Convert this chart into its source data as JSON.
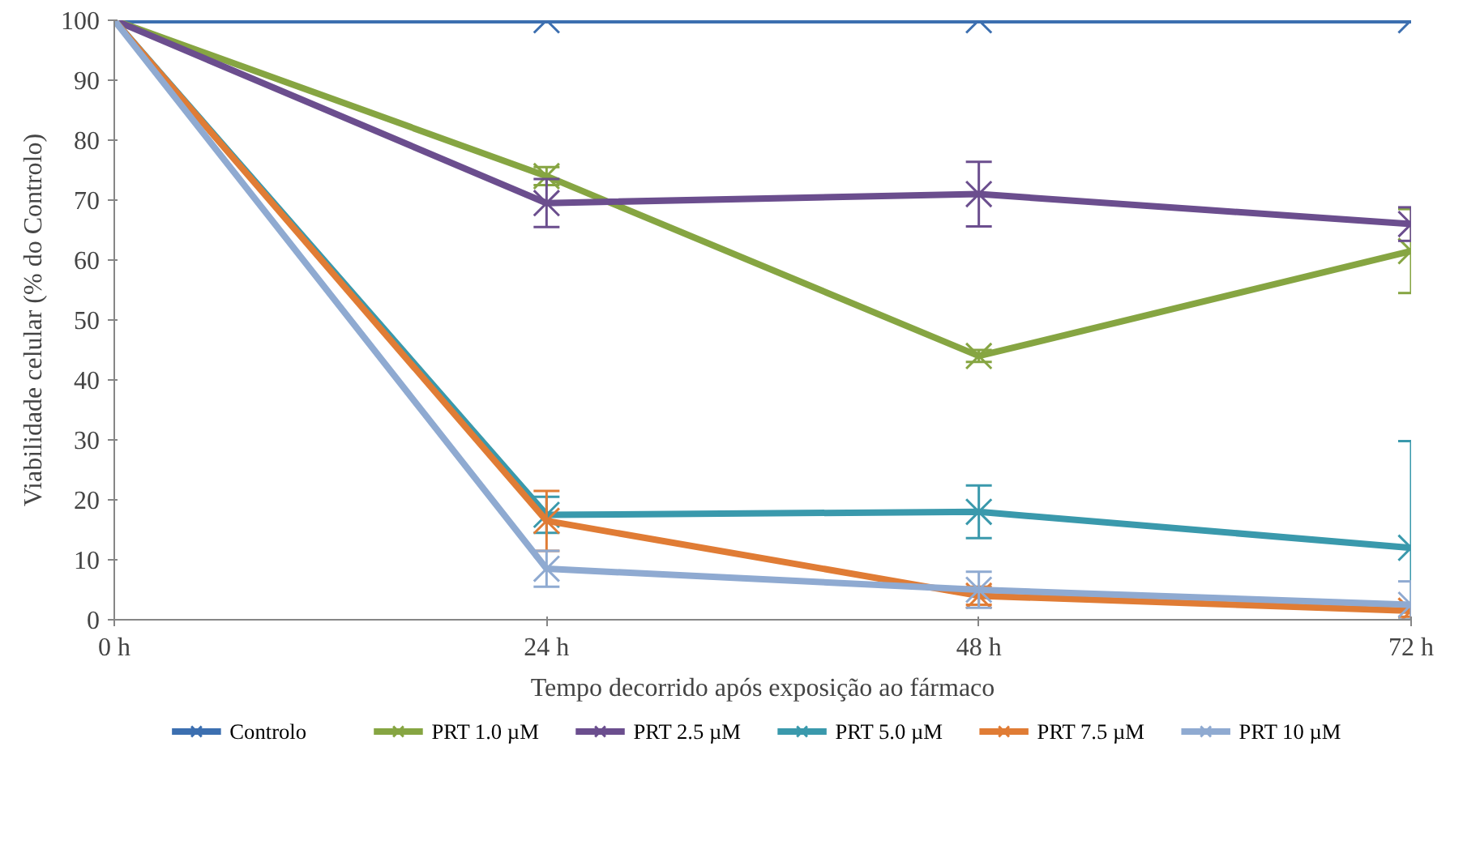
{
  "chart_data": {
    "type": "line",
    "xlabel": "Tempo decorrido após exposição ao fármaco",
    "ylabel": "Viabilidade celular (% do Controlo)",
    "categories": [
      "0 h",
      "24 h",
      "48 h",
      "72 h"
    ],
    "ylim": [
      0,
      100
    ],
    "yticks": [
      0,
      10,
      20,
      30,
      40,
      50,
      60,
      70,
      80,
      90,
      100
    ],
    "grid": false,
    "legend": "bottom",
    "marker": "cross",
    "line_style": "solid",
    "series": [
      {
        "name": "Controlo",
        "color": "#3c6fb0",
        "values": [
          100,
          100,
          100,
          100
        ]
      },
      {
        "name": "PRT 1.0 µM",
        "color": "#86a542",
        "values": [
          100,
          74,
          44,
          61.5
        ],
        "errors": [
          null,
          1.5,
          1,
          7
        ]
      },
      {
        "name": "PRT 2.5 µM",
        "color": "#6b4e8e",
        "values": [
          100,
          69.5,
          71,
          66
        ],
        "errors": [
          null,
          4,
          5.4,
          2.8
        ]
      },
      {
        "name": "PRT 5.0 µM",
        "color": "#3a99ac",
        "values": [
          100,
          17.5,
          18,
          12
        ],
        "errors": [
          null,
          3,
          4.4,
          [
            0,
            29.8
          ]
        ]
      },
      {
        "name": "PRT 7.5 µM",
        "color": "#e07c35",
        "values": [
          100,
          16.5,
          4,
          1.5
        ],
        "errors": [
          null,
          5,
          1.5,
          1
        ]
      },
      {
        "name": "PRT 10 µM",
        "color": "#8faad1",
        "values": [
          100,
          8.5,
          5,
          2.5
        ],
        "errors": [
          null,
          3,
          3,
          [
            0,
            6.4
          ]
        ]
      }
    ]
  }
}
